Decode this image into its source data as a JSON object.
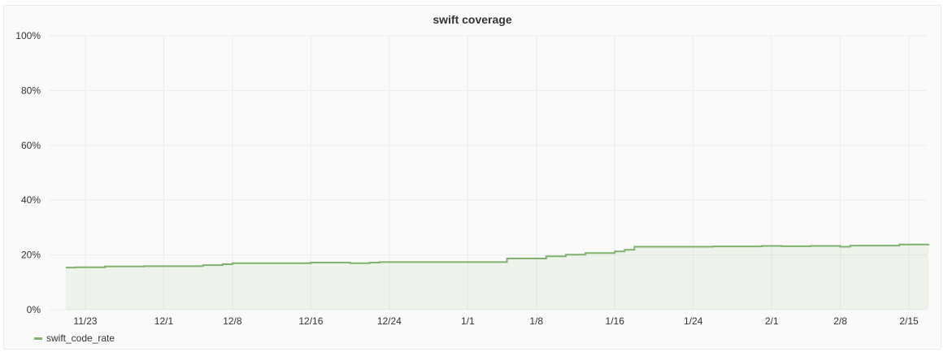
{
  "panel": {
    "title": "swift coverage"
  },
  "chart_data": {
    "type": "line",
    "title": "swift coverage",
    "xlabel": "",
    "ylabel": "",
    "ylim": [
      0,
      100
    ],
    "y_ticks": [
      0,
      20,
      40,
      60,
      80,
      100
    ],
    "y_tick_format": "%",
    "x_start": "2017-11-20",
    "x_end": "2018-02-17",
    "x_ticks": [
      {
        "date": "2017-11-23",
        "label": "11/23"
      },
      {
        "date": "2017-12-01",
        "label": "12/1"
      },
      {
        "date": "2017-12-08",
        "label": "12/8"
      },
      {
        "date": "2017-12-16",
        "label": "12/16"
      },
      {
        "date": "2017-12-24",
        "label": "12/24"
      },
      {
        "date": "2018-01-01",
        "label": "1/1"
      },
      {
        "date": "2018-01-08",
        "label": "1/8"
      },
      {
        "date": "2018-01-16",
        "label": "1/16"
      },
      {
        "date": "2018-01-24",
        "label": "1/24"
      },
      {
        "date": "2018-02-01",
        "label": "2/1"
      },
      {
        "date": "2018-02-08",
        "label": "2/8"
      },
      {
        "date": "2018-02-15",
        "label": "2/15"
      }
    ],
    "grid": true,
    "legend_position": "bottom-left",
    "series": [
      {
        "name": "swift_code_rate",
        "color": "#7eb26d",
        "fill": true,
        "step": true,
        "points": [
          {
            "x": "2017-11-21",
            "y": 15.4
          },
          {
            "x": "2017-11-22",
            "y": 15.5
          },
          {
            "x": "2017-11-25",
            "y": 15.8
          },
          {
            "x": "2017-11-29",
            "y": 15.9
          },
          {
            "x": "2017-12-05",
            "y": 16.3
          },
          {
            "x": "2017-12-07",
            "y": 16.6
          },
          {
            "x": "2017-12-08",
            "y": 17.0
          },
          {
            "x": "2017-12-16",
            "y": 17.2
          },
          {
            "x": "2017-12-20",
            "y": 17.0
          },
          {
            "x": "2017-12-22",
            "y": 17.2
          },
          {
            "x": "2017-12-23",
            "y": 17.4
          },
          {
            "x": "2018-01-05",
            "y": 18.7
          },
          {
            "x": "2018-01-09",
            "y": 19.5
          },
          {
            "x": "2018-01-11",
            "y": 20.1
          },
          {
            "x": "2018-01-13",
            "y": 20.7
          },
          {
            "x": "2018-01-16",
            "y": 21.3
          },
          {
            "x": "2018-01-17",
            "y": 21.9
          },
          {
            "x": "2018-01-18",
            "y": 23.0
          },
          {
            "x": "2018-01-26",
            "y": 23.1
          },
          {
            "x": "2018-01-31",
            "y": 23.3
          },
          {
            "x": "2018-02-02",
            "y": 23.2
          },
          {
            "x": "2018-02-05",
            "y": 23.3
          },
          {
            "x": "2018-02-08",
            "y": 23.0
          },
          {
            "x": "2018-02-09",
            "y": 23.4
          },
          {
            "x": "2018-02-14",
            "y": 23.8
          },
          {
            "x": "2018-02-17",
            "y": 24.0
          }
        ]
      }
    ]
  }
}
